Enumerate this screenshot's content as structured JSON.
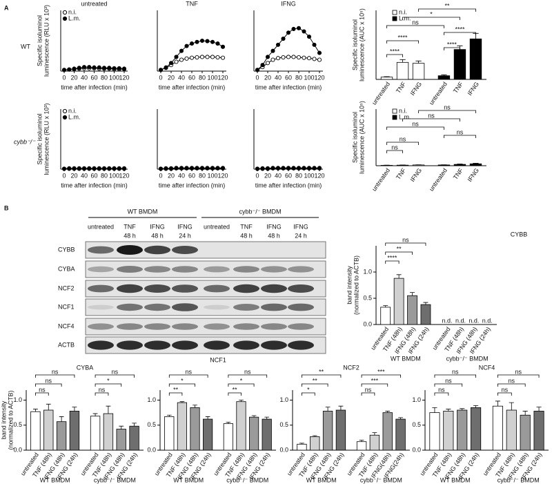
{
  "panels": [
    "A",
    "B"
  ],
  "row_labels": [
    "WT",
    "cybb⁻/⁻"
  ],
  "blot": {
    "groups": [
      "WT BMDM",
      "cybb⁻/⁻ BMDM"
    ],
    "lanes": [
      [
        "untreated"
      ],
      [
        "TNF",
        "48 h"
      ],
      [
        "IFNG",
        "48 h"
      ],
      [
        "IFNG",
        "24 h"
      ],
      [
        "untreated"
      ],
      [
        "TNF",
        "48 h"
      ],
      [
        "IFNG",
        "48 h"
      ],
      [
        "IFNG",
        "24 h"
      ]
    ],
    "proteins": [
      "CYBB",
      "CYBA",
      "NCF2",
      "NCF1",
      "NCF4",
      "ACTB"
    ]
  },
  "chart_data": [
    {
      "type": "line",
      "title": "untreated",
      "y_label": [
        "Specific isoluminol",
        "luminescence (RLU x 10³)"
      ],
      "x_label": "time after infection (min)",
      "x": [
        0,
        10,
        20,
        30,
        40,
        50,
        60,
        70,
        80,
        90,
        100,
        110,
        120
      ],
      "xlim": [
        0,
        120
      ],
      "xticks": [
        0,
        20,
        40,
        60,
        80,
        100,
        120
      ],
      "ylim": [
        0,
        15
      ],
      "legend": true,
      "series": [
        {
          "name": "n.i.",
          "color": "#000000",
          "fill": "#ffffff",
          "values": [
            0.3,
            0.4,
            0.5,
            0.6,
            0.7,
            0.7,
            0.7,
            0.6,
            0.6,
            0.6,
            0.5,
            0.5,
            0.5
          ]
        },
        {
          "name": "L.m.",
          "color": "#000000",
          "fill": "#000000",
          "values": [
            0.3,
            0.4,
            0.6,
            0.8,
            1.0,
            1.0,
            0.9,
            0.9,
            0.8,
            0.8,
            0.7,
            0.7,
            0.6
          ]
        }
      ]
    },
    {
      "type": "line",
      "title": "TNF",
      "x_label": "time after infection (min)",
      "x": [
        0,
        10,
        20,
        30,
        40,
        50,
        60,
        70,
        80,
        90,
        100,
        110,
        120
      ],
      "xlim": [
        0,
        120
      ],
      "xticks": [
        0,
        20,
        40,
        60,
        80,
        100,
        120
      ],
      "ylim": [
        0,
        15
      ],
      "legend": false,
      "series": [
        {
          "color": "#000000",
          "fill": "#ffffff",
          "values": [
            0.3,
            0.8,
            1.5,
            2.3,
            2.8,
            3.1,
            3.3,
            3.4,
            3.5,
            3.5,
            3.5,
            3.4,
            3.3
          ]
        },
        {
          "color": "#000000",
          "fill": "#000000",
          "values": [
            0.3,
            0.9,
            2.0,
            3.5,
            5.0,
            6.2,
            6.8,
            7.2,
            7.5,
            7.4,
            7.2,
            6.8,
            6.0
          ]
        }
      ]
    },
    {
      "type": "line",
      "title": "IFNG",
      "x_label": "time after infection (min)",
      "x": [
        0,
        10,
        20,
        30,
        40,
        50,
        60,
        70,
        80,
        90,
        100,
        110,
        120
      ],
      "xlim": [
        0,
        120
      ],
      "xticks": [
        0,
        20,
        40,
        60,
        80,
        100,
        120
      ],
      "ylim": [
        0,
        15
      ],
      "legend": false,
      "series": [
        {
          "color": "#000000",
          "fill": "#ffffff",
          "values": [
            0.3,
            1.0,
            2.0,
            2.8,
            3.2,
            3.4,
            3.5,
            3.5,
            3.4,
            3.3,
            3.2,
            3.0,
            2.8
          ]
        },
        {
          "color": "#000000",
          "fill": "#000000",
          "values": [
            0.3,
            1.5,
            3.5,
            5.0,
            6.5,
            8.0,
            9.5,
            10.4,
            10.6,
            9.8,
            8.5,
            6.5,
            4.5
          ]
        }
      ]
    },
    {
      "type": "bar",
      "y_label": [
        "Specific isoluminol",
        "luminescence (AUC x 10⁵)"
      ],
      "ylim": [
        0,
        15
      ],
      "legend": true,
      "categories": [
        "untreated",
        "TNF",
        "IFNG",
        "untreated",
        "TNF",
        "IFNG"
      ],
      "series": [
        {
          "name": "n.i.",
          "color": "#ffffff",
          "values": [
            0.5,
            3.7,
            3.5,
            null,
            null,
            null
          ],
          "errors": [
            0.1,
            0.6,
            0.5,
            null,
            null,
            null
          ]
        },
        {
          "name": "L.m.",
          "color": "#000000",
          "values": [
            null,
            null,
            null,
            0.8,
            6.5,
            8.8
          ],
          "errors": [
            null,
            null,
            null,
            0.2,
            0.8,
            1.2
          ]
        }
      ],
      "annotations": [
        "**",
        "*",
        "ns",
        "****",
        "****",
        "****",
        "****"
      ]
    },
    {
      "type": "line",
      "y_label": [
        "Specific isoluminol",
        "luminescence (RLU x 10³)"
      ],
      "x_label": "time after infection (min)",
      "x": [
        0,
        10,
        20,
        30,
        40,
        50,
        60,
        70,
        80,
        90,
        100,
        110,
        120
      ],
      "xlim": [
        0,
        120
      ],
      "xticks": [
        0,
        20,
        40,
        60,
        80,
        100,
        120
      ],
      "ylim": [
        0,
        15
      ],
      "legend": true,
      "series": [
        {
          "name": "n.i.",
          "color": "#000000",
          "fill": "#ffffff",
          "values": [
            0.1,
            0.1,
            0.1,
            0.1,
            0.1,
            0.1,
            0.1,
            0.1,
            0.1,
            0.1,
            0.1,
            0.1,
            0.1
          ]
        },
        {
          "name": "L.m.",
          "color": "#000000",
          "fill": "#000000",
          "values": [
            0.1,
            0.2,
            0.2,
            0.2,
            0.2,
            0.2,
            0.2,
            0.2,
            0.2,
            0.2,
            0.2,
            0.2,
            0.2
          ]
        }
      ]
    },
    {
      "type": "line",
      "x_label": "time after infection (min)",
      "x": [
        0,
        10,
        20,
        30,
        40,
        50,
        60,
        70,
        80,
        90,
        100,
        110,
        120
      ],
      "xlim": [
        0,
        120
      ],
      "xticks": [
        0,
        20,
        40,
        60,
        80,
        100,
        120
      ],
      "ylim": [
        0,
        15
      ],
      "legend": false,
      "series": [
        {
          "color": "#000000",
          "fill": "#ffffff",
          "values": [
            0.1,
            0.1,
            0.1,
            0.2,
            0.2,
            0.2,
            0.2,
            0.2,
            0.2,
            0.2,
            0.2,
            0.2,
            0.2
          ]
        },
        {
          "color": "#000000",
          "fill": "#000000",
          "values": [
            0.1,
            0.2,
            0.2,
            0.3,
            0.3,
            0.3,
            0.3,
            0.3,
            0.3,
            0.3,
            0.3,
            0.3,
            0.3
          ]
        }
      ]
    },
    {
      "type": "line",
      "x_label": "time after infection (min)",
      "x": [
        0,
        10,
        20,
        30,
        40,
        50,
        60,
        70,
        80,
        90,
        100,
        110,
        120
      ],
      "xlim": [
        0,
        120
      ],
      "xticks": [
        0,
        20,
        40,
        60,
        80,
        100,
        120
      ],
      "ylim": [
        0,
        15
      ],
      "legend": false,
      "series": [
        {
          "color": "#000000",
          "fill": "#ffffff",
          "values": [
            0.1,
            0.1,
            0.1,
            0.2,
            0.2,
            0.2,
            0.2,
            0.2,
            0.2,
            0.2,
            0.2,
            0.2,
            0.2
          ]
        },
        {
          "color": "#000000",
          "fill": "#000000",
          "values": [
            0.1,
            0.2,
            0.2,
            0.3,
            0.3,
            0.3,
            0.3,
            0.3,
            0.3,
            0.3,
            0.3,
            0.3,
            0.3
          ]
        }
      ]
    },
    {
      "type": "bar",
      "y_label": [
        "Specific isoluminol",
        "luminescence (AUC x 10⁵)"
      ],
      "ylim": [
        0,
        15
      ],
      "legend": true,
      "categories": [
        "untreated",
        "TNF",
        "IFNG",
        "untreated",
        "TNF",
        "IFNG"
      ],
      "series": [
        {
          "name": "n.i.",
          "color": "#ffffff",
          "values": [
            0.1,
            0.15,
            0.2,
            null,
            null,
            null
          ],
          "errors": [
            0.05,
            0.05,
            0.05,
            null,
            null,
            null
          ]
        },
        {
          "name": "L.m.",
          "color": "#000000",
          "values": [
            null,
            null,
            null,
            0.2,
            0.35,
            0.5
          ],
          "errors": [
            null,
            null,
            null,
            0.05,
            0.1,
            0.15
          ]
        }
      ],
      "annotations": [
        "ns",
        "ns",
        "ns",
        "ns",
        "ns",
        "ns"
      ]
    },
    {
      "type": "bar",
      "title": "CYBB",
      "y_label": [
        "band intensity",
        "(normalized to ACTB)"
      ],
      "ylim": [
        0,
        1.5
      ],
      "yticks": [
        {
          "value": 0,
          "label": "0.0"
        },
        {
          "value": 0.5,
          "label": "0.5"
        },
        {
          "value": 1,
          "label": "1.0"
        }
      ],
      "categories": [
        "untreated",
        "TNF (48h)",
        "IFNG (48h)",
        "IFNG (24h)",
        "untreated",
        "TNF (48h)",
        "IFNG (48h)",
        "IFNG (24h)"
      ],
      "groups": [
        "WT BMDM",
        "cybb⁻/⁻ BMDM"
      ],
      "colors": [
        "#ffffff",
        "#d0d0d0",
        "#9a9a9a",
        "#6e6e6e",
        "#ffffff",
        "#d0d0d0",
        "#9a9a9a",
        "#6e6e6e"
      ],
      "values": [
        0.33,
        0.88,
        0.55,
        0.38,
        null,
        null,
        null,
        null
      ],
      "errors": [
        0.03,
        0.07,
        0.06,
        0.04,
        null,
        null,
        null,
        null
      ],
      "value_labels": [
        null,
        null,
        null,
        null,
        "n.d.",
        "n.d.",
        "n.d.",
        "n.d."
      ],
      "annotations": [
        "ns",
        "**",
        "****"
      ]
    },
    {
      "type": "bar",
      "title": "CYBA",
      "y_label": [
        "band intensity",
        "(normalized to ACTB)"
      ],
      "ylim": [
        0,
        1.2
      ],
      "yticks": [
        {
          "value": 0,
          "label": "0.0"
        },
        {
          "value": 0.5,
          "label": "0.5"
        },
        {
          "value": 1,
          "label": "1.0"
        }
      ],
      "categories": [
        "untreated",
        "TNF (48h)",
        "IFNG (48h)",
        "IFNG (24h)",
        "untreated",
        "TNF (48h)",
        "IFNG (48h)",
        "IFNG (24h)"
      ],
      "groups": [
        "WT BMDM",
        "cybb⁻/⁻ BMDM"
      ],
      "colors": [
        "#ffffff",
        "#d0d0d0",
        "#9a9a9a",
        "#6e6e6e",
        "#ffffff",
        "#d0d0d0",
        "#9a9a9a",
        "#6e6e6e"
      ],
      "values": [
        0.77,
        0.8,
        0.57,
        0.78,
        0.68,
        0.73,
        0.42,
        0.48
      ],
      "errors": [
        0.05,
        0.12,
        0.1,
        0.08,
        0.05,
        0.15,
        0.06,
        0.06
      ],
      "annotations": [
        "ns",
        "ns",
        "ns",
        "ns",
        "*",
        "ns"
      ]
    },
    {
      "type": "bar",
      "title": "NCF1",
      "ylim": [
        0,
        1.2
      ],
      "yticks": [
        {
          "value": 0,
          "label": "0.0"
        },
        {
          "value": 0.5,
          "label": "0.5"
        },
        {
          "value": 1,
          "label": "1.0"
        }
      ],
      "categories": [
        "untreated",
        "TNF (48h)",
        "IFNG (48h)",
        "IFNG (24h)",
        "untreated",
        "TNF (48h)",
        "IFNG (48h)",
        "IFNG (24h)"
      ],
      "groups": [
        "WT BMDM",
        "cybb⁻/⁻ BMDM"
      ],
      "colors": [
        "#ffffff",
        "#d0d0d0",
        "#9a9a9a",
        "#6e6e6e",
        "#ffffff",
        "#d0d0d0",
        "#9a9a9a",
        "#6e6e6e"
      ],
      "values": [
        0.67,
        0.95,
        0.85,
        0.62,
        0.53,
        0.97,
        0.66,
        0.62
      ],
      "errors": [
        0.03,
        0.02,
        0.05,
        0.05,
        0.03,
        0.03,
        0.03,
        0.04
      ],
      "annotations": [
        "ns",
        "*",
        "**",
        "ns",
        "*",
        "**"
      ]
    },
    {
      "type": "bar",
      "title": "NCF2",
      "ylim": [
        0,
        1.2
      ],
      "yticks": [
        {
          "value": 0,
          "label": "0.0"
        },
        {
          "value": 0.5,
          "label": "0.5"
        },
        {
          "value": 1,
          "label": "1.0"
        }
      ],
      "categories": [
        "untreated",
        "TNF (48h)",
        "IFNG (48h)",
        "IFNG (24h)",
        "untreated",
        "TNF (48h)",
        "IFNG(48h)",
        "IFNG(24h)"
      ],
      "groups": [
        "WT BMDM",
        "cybb⁻/⁻ BMDM"
      ],
      "colors": [
        "#ffffff",
        "#d0d0d0",
        "#9a9a9a",
        "#6e6e6e",
        "#ffffff",
        "#d0d0d0",
        "#9a9a9a",
        "#6e6e6e"
      ],
      "values": [
        0.12,
        0.27,
        0.78,
        0.8,
        0.17,
        0.3,
        0.75,
        0.62
      ],
      "errors": [
        0.02,
        0.02,
        0.08,
        0.08,
        0.03,
        0.05,
        0.03,
        0.03
      ],
      "annotations": [
        "**",
        "**",
        "*",
        "***",
        "***",
        "ns"
      ]
    },
    {
      "type": "bar",
      "title": "NCF4",
      "ylim": [
        0,
        1.2
      ],
      "yticks": [
        {
          "value": 0,
          "label": "0.0"
        },
        {
          "value": 0.5,
          "label": "0.5"
        },
        {
          "value": 1,
          "label": "1.0"
        }
      ],
      "categories": [
        "untreated",
        "TNF (48h)",
        "IFNG (48h)",
        "IFNG (24h)",
        "untreated",
        "TNF (48h)",
        "IFNG (48h)",
        "IFNG (24h)"
      ],
      "groups": [
        "WT BMDM",
        "cybb⁻/⁻ BMDM"
      ],
      "colors": [
        "#ffffff",
        "#d0d0d0",
        "#9a9a9a",
        "#6e6e6e",
        "#ffffff",
        "#d0d0d0",
        "#9a9a9a",
        "#6e6e6e"
      ],
      "values": [
        0.75,
        0.78,
        0.8,
        0.85,
        0.88,
        0.8,
        0.7,
        0.78
      ],
      "errors": [
        0.1,
        0.04,
        0.03,
        0.04,
        0.1,
        0.15,
        0.08,
        0.08
      ],
      "annotations": [
        "ns",
        "ns",
        "ns",
        "ns",
        "ns",
        "ns"
      ]
    }
  ]
}
